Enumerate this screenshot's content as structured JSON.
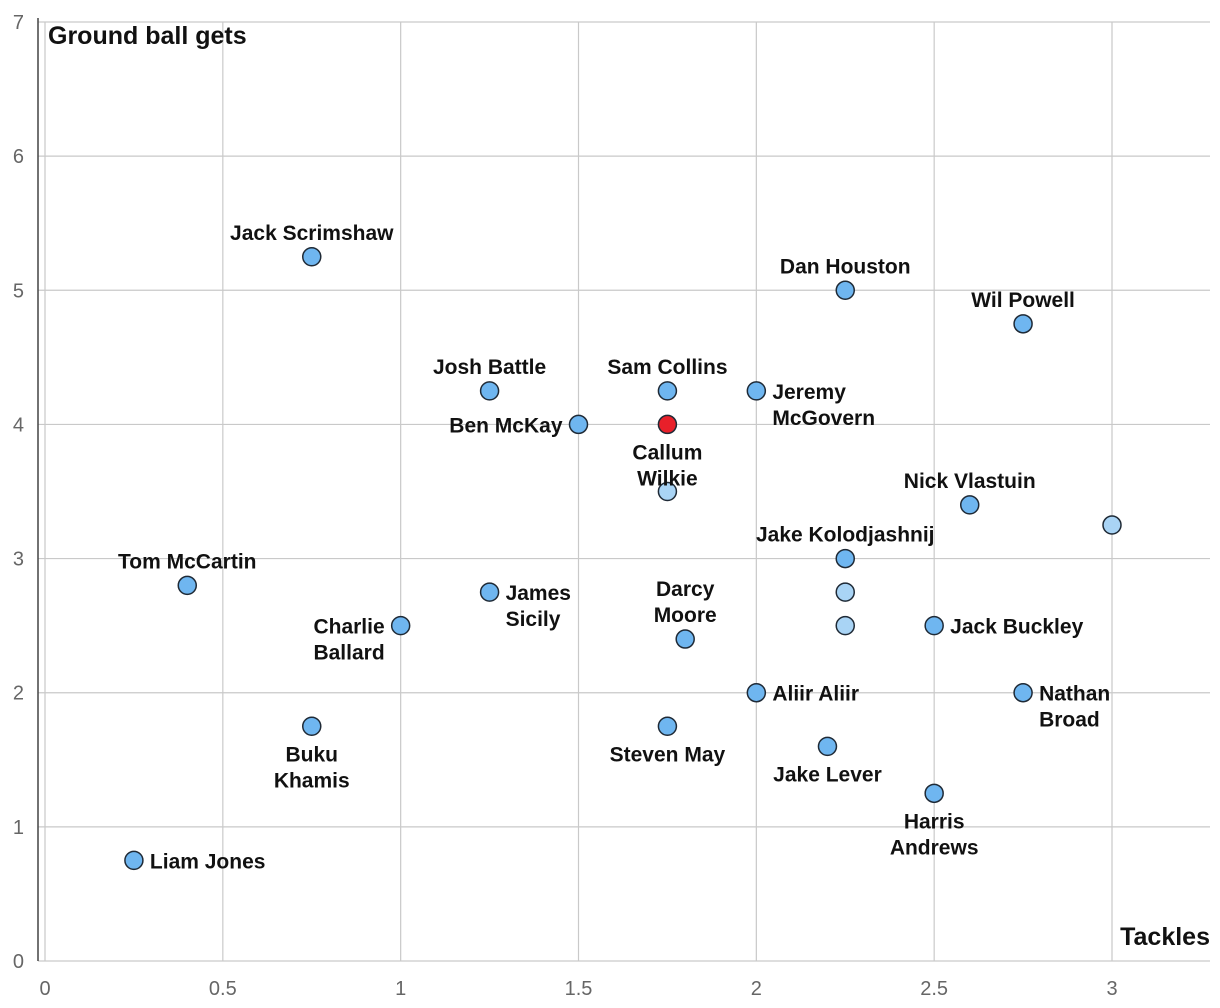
{
  "chart_data": {
    "type": "scatter",
    "title": "",
    "xlabel": "Tackles",
    "ylabel": "Ground ball gets",
    "xlim": [
      0,
      3.25
    ],
    "ylim": [
      0,
      7
    ],
    "x_ticks": [
      "0",
      "0.5",
      "1",
      "1.5",
      "2",
      "2.5",
      "3"
    ],
    "x_tick_values": [
      0,
      0.5,
      1,
      1.5,
      2,
      2.5,
      3
    ],
    "y_ticks": [
      "0",
      "1",
      "2",
      "3",
      "4",
      "5",
      "6",
      "7"
    ],
    "y_tick_values": [
      0,
      1,
      2,
      3,
      4,
      5,
      6,
      7
    ],
    "grid": true,
    "colors": {
      "point": "#6fb6f0",
      "point_light": "#a9d4f5",
      "highlight": "#e8202a",
      "outline": "#1f2a36"
    },
    "points": [
      {
        "name": "Jack Scrimshaw",
        "x": 0.75,
        "y": 5.25,
        "label_position": "above"
      },
      {
        "name": "Dan Houston",
        "x": 2.25,
        "y": 5.0,
        "label_position": "above"
      },
      {
        "name": "Wil Powell",
        "x": 2.75,
        "y": 4.75,
        "label_position": "above"
      },
      {
        "name": "Josh Battle",
        "x": 1.25,
        "y": 4.25,
        "label_position": "above"
      },
      {
        "name": "Sam Collins",
        "x": 1.75,
        "y": 4.25,
        "label_position": "above"
      },
      {
        "name": "Jeremy McGovern",
        "x": 2.0,
        "y": 4.25,
        "label_position": "right",
        "label_lines": [
          "Jeremy",
          "McGovern"
        ]
      },
      {
        "name": "Ben McKay",
        "x": 1.5,
        "y": 4.0,
        "label_position": "left"
      },
      {
        "name": "Callum Wilkie",
        "x": 1.75,
        "y": 4.0,
        "label_position": "below",
        "label_lines": [
          "Callum",
          "Wilkie"
        ],
        "highlight": true
      },
      {
        "name": "",
        "x": 1.75,
        "y": 3.5,
        "label_position": "none",
        "light": true
      },
      {
        "name": "Nick Vlastuin",
        "x": 2.6,
        "y": 3.4,
        "label_position": "above"
      },
      {
        "name": "",
        "x": 3.0,
        "y": 3.25,
        "label_position": "none",
        "light": true
      },
      {
        "name": "Jake Kolodjashnij",
        "x": 2.25,
        "y": 3.0,
        "label_position": "above"
      },
      {
        "name": "Tom McCartin",
        "x": 0.4,
        "y": 2.8,
        "label_position": "above"
      },
      {
        "name": "James Sicily",
        "x": 1.25,
        "y": 2.75,
        "label_position": "right",
        "label_lines": [
          "James",
          "Sicily"
        ]
      },
      {
        "name": "",
        "x": 2.25,
        "y": 2.75,
        "label_position": "none",
        "light": true
      },
      {
        "name": "Charlie Ballard",
        "x": 1.0,
        "y": 2.5,
        "label_position": "left",
        "label_lines": [
          "Charlie",
          "Ballard"
        ]
      },
      {
        "name": "",
        "x": 2.25,
        "y": 2.5,
        "label_position": "none",
        "light": true
      },
      {
        "name": "Jack Buckley",
        "x": 2.5,
        "y": 2.5,
        "label_position": "right"
      },
      {
        "name": "Darcy Moore",
        "x": 1.8,
        "y": 2.4,
        "label_position": "above",
        "label_lines": [
          "Darcy",
          "Moore"
        ]
      },
      {
        "name": "Aliir Aliir",
        "x": 2.0,
        "y": 2.0,
        "label_position": "right"
      },
      {
        "name": "Nathan Broad",
        "x": 2.75,
        "y": 2.0,
        "label_position": "right",
        "label_lines": [
          "Nathan",
          "Broad"
        ]
      },
      {
        "name": "Buku Khamis",
        "x": 0.75,
        "y": 1.75,
        "label_position": "below",
        "label_lines": [
          "Buku",
          "Khamis"
        ]
      },
      {
        "name": "Steven May",
        "x": 1.75,
        "y": 1.75,
        "label_position": "below"
      },
      {
        "name": "Jake Lever",
        "x": 2.2,
        "y": 1.6,
        "label_position": "below"
      },
      {
        "name": "Harris Andrews",
        "x": 2.5,
        "y": 1.25,
        "label_position": "below",
        "label_lines": [
          "Harris",
          "Andrews"
        ]
      },
      {
        "name": "Liam Jones",
        "x": 0.25,
        "y": 0.75,
        "label_position": "right"
      }
    ]
  }
}
